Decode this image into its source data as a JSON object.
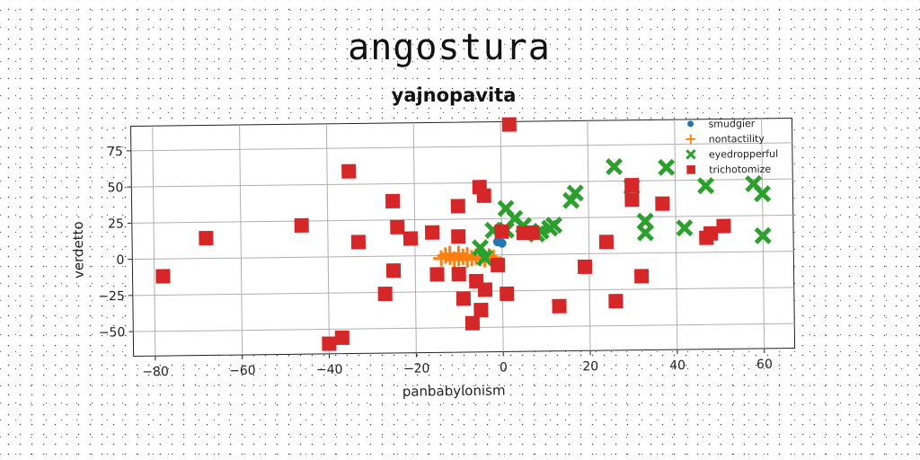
{
  "title": "angostura",
  "subtitle": "yajnopavita",
  "chart_data": {
    "type": "scatter",
    "xlabel": "panbabylonism",
    "ylabel": "verdetto",
    "xlim": [
      -85,
      67
    ],
    "ylim": [
      -67,
      92
    ],
    "xticks": [
      -80,
      -60,
      -40,
      -20,
      0,
      20,
      40,
      60
    ],
    "yticks": [
      -50,
      -25,
      0,
      25,
      50,
      75
    ],
    "xtick_labels": [
      "−80",
      "−60",
      "−40",
      "−20",
      "0",
      "20",
      "40",
      "60"
    ],
    "ytick_labels": [
      "−50",
      "−25",
      "0",
      "25",
      "50",
      "75"
    ],
    "grid": true,
    "legend_position": "top-right",
    "series": [
      {
        "name": "smudgier",
        "marker": "circle",
        "color": "#1f77b4",
        "points": [
          [
            0,
            8
          ],
          [
            -1,
            9
          ]
        ]
      },
      {
        "name": "nontactility",
        "marker": "plus",
        "color": "#ff7f0e",
        "points": [
          [
            -14,
            -2
          ],
          [
            -13,
            0
          ],
          [
            -12,
            -1
          ],
          [
            -11,
            -3
          ],
          [
            -10,
            -2
          ],
          [
            -9,
            -1
          ],
          [
            -8,
            0
          ],
          [
            -8,
            -3
          ],
          [
            -7,
            -2
          ],
          [
            -6,
            -1
          ],
          [
            -5,
            -2
          ],
          [
            -4,
            -3
          ],
          [
            -3,
            -1
          ],
          [
            -2,
            -2
          ],
          [
            -12,
            1
          ],
          [
            -10,
            1
          ]
        ]
      },
      {
        "name": "eyedropperful",
        "marker": "x",
        "color": "#2ca02c",
        "points": [
          [
            -5,
            5
          ],
          [
            -4,
            -2
          ],
          [
            -2,
            17
          ],
          [
            1,
            32
          ],
          [
            1,
            17
          ],
          [
            3,
            25
          ],
          [
            5,
            20
          ],
          [
            8,
            14
          ],
          [
            9,
            16
          ],
          [
            11,
            18
          ],
          [
            12,
            20
          ],
          [
            16,
            37
          ],
          [
            17,
            42
          ],
          [
            26,
            60
          ],
          [
            30,
            46
          ],
          [
            33,
            22
          ],
          [
            33,
            14
          ],
          [
            38,
            59
          ],
          [
            42,
            17
          ],
          [
            47,
            46
          ],
          [
            58,
            47
          ],
          [
            60,
            40
          ],
          [
            60,
            11
          ]
        ]
      },
      {
        "name": "trichotomize",
        "marker": "square",
        "color": "#d62728",
        "points": [
          [
            -78,
            -12
          ],
          [
            -68,
            14
          ],
          [
            -46,
            22
          ],
          [
            -40,
            -60
          ],
          [
            -37,
            -56
          ],
          [
            -35,
            59
          ],
          [
            -33,
            10
          ],
          [
            -27,
            -26
          ],
          [
            -25,
            38
          ],
          [
            -25,
            -10
          ],
          [
            -24,
            20
          ],
          [
            -21,
            12
          ],
          [
            -16,
            16
          ],
          [
            -15,
            -13
          ],
          [
            -10,
            34
          ],
          [
            -10,
            13
          ],
          [
            -10,
            -13
          ],
          [
            -9,
            -30
          ],
          [
            -7,
            -47
          ],
          [
            -6,
            -18
          ],
          [
            -5,
            -38
          ],
          [
            -5,
            47
          ],
          [
            -4,
            41
          ],
          [
            -4,
            -24
          ],
          [
            -1,
            -7
          ],
          [
            0,
            16
          ],
          [
            1,
            -27
          ],
          [
            2,
            90
          ],
          [
            5,
            15
          ],
          [
            7,
            15
          ],
          [
            13,
            -36
          ],
          [
            19,
            -9
          ],
          [
            24,
            8
          ],
          [
            26,
            -33
          ],
          [
            30,
            47
          ],
          [
            30,
            37
          ],
          [
            32,
            -16
          ],
          [
            37,
            34
          ],
          [
            47,
            10
          ],
          [
            48,
            13
          ],
          [
            51,
            18
          ]
        ]
      }
    ]
  }
}
